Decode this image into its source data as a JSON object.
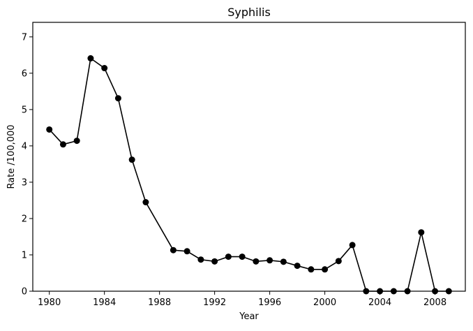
{
  "chart_data": {
    "type": "line",
    "title": "Syphilis",
    "xlabel": "Year",
    "ylabel": "Rate /100,000",
    "xlim": [
      1978.8,
      2010.2
    ],
    "ylim": [
      0,
      7.4
    ],
    "xticks": [
      1980,
      1984,
      1988,
      1992,
      1996,
      2000,
      2004,
      2008
    ],
    "yticks": [
      0,
      1,
      2,
      3,
      4,
      5,
      6,
      7
    ],
    "grid": false,
    "line_color": "#000000",
    "marker": "circle",
    "series": [
      {
        "x": [
          1980,
          1981,
          1982,
          1983,
          1984,
          1985,
          1986,
          1987,
          1989,
          1990,
          1991,
          1992,
          1993,
          1994,
          1995,
          1996,
          1997,
          1998,
          1999,
          2000,
          2001,
          2002,
          2003,
          2004,
          2005,
          2006,
          2007,
          2008,
          2009
        ],
        "y": [
          4.45,
          4.04,
          4.14,
          6.41,
          6.14,
          5.31,
          3.62,
          2.45,
          1.13,
          1.1,
          0.87,
          0.82,
          0.95,
          0.95,
          0.82,
          0.85,
          0.81,
          0.7,
          0.6,
          0.6,
          0.83,
          1.27,
          0.0,
          0.0,
          0.0,
          0.0,
          1.62,
          0.0,
          0.0
        ]
      }
    ]
  }
}
